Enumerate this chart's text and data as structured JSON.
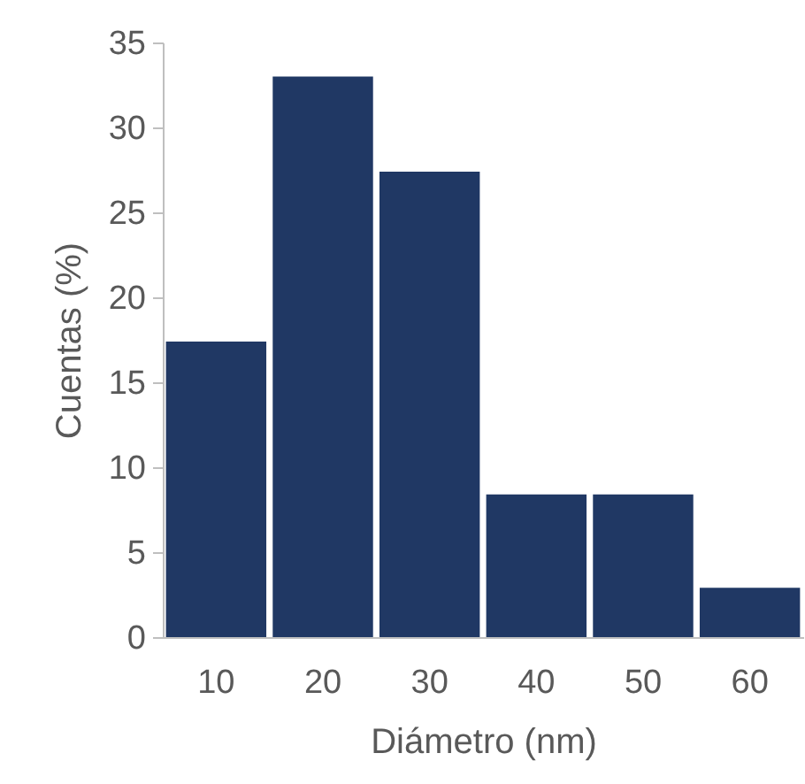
{
  "chart_data": {
    "type": "bar",
    "xlabel": "Diámetro (nm)",
    "ylabel": "Cuentas (%)",
    "categories": [
      "10",
      "20",
      "30",
      "40",
      "50",
      "60"
    ],
    "values": [
      17.4,
      33,
      27.4,
      8.4,
      8.4,
      2.9
    ],
    "color": "#203864",
    "ylim": [
      0,
      35
    ],
    "yticks": [
      0,
      5,
      10,
      15,
      20,
      25,
      30,
      35
    ],
    "grid": false
  }
}
